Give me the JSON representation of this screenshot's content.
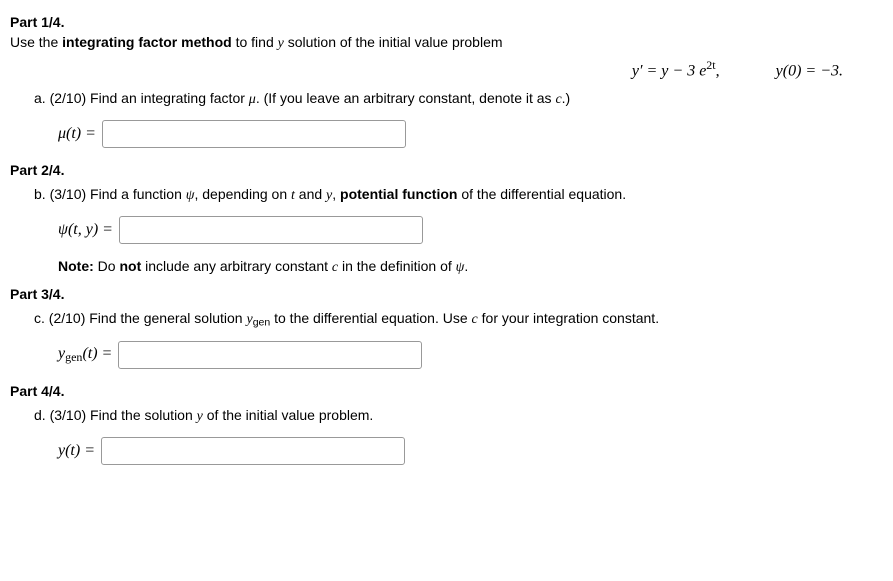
{
  "part1": {
    "heading": "Part 1/4.",
    "intro_before": "Use the ",
    "intro_bold": "integrating factor method",
    "intro_after": " to find ",
    "intro_var": "y",
    "intro_end": " solution of the initial value problem",
    "eq_lhs": "y′ = y − 3 e",
    "eq_exp": "2t",
    "eq_comma": ",",
    "ic": "y(0) = −3.",
    "a_prefix": "a.  (2/10) Find an integrating factor ",
    "a_mu": "μ",
    "a_mid": ". (If you leave an arbitrary constant, denote it as ",
    "a_c": "c",
    "a_end": ".)",
    "mu_label": "μ(t) ="
  },
  "part2": {
    "heading": "Part 2/4.",
    "b_prefix": "b.  (3/10) Find a function ",
    "b_psi": "ψ",
    "b_mid1": ", depending on ",
    "b_t": "t",
    "b_and": " and ",
    "b_y": "y",
    "b_comma": ", ",
    "b_bold": "potential function",
    "b_end": " of the differential equation.",
    "psi_label": "ψ(t, y) =",
    "note_before": "Note:",
    "note_mid1": " Do ",
    "note_bold": "not",
    "note_mid2": " include any arbitrary constant ",
    "note_c": "c",
    "note_mid3": " in the definition of ",
    "note_psi": "ψ",
    "note_end": "."
  },
  "part3": {
    "heading": "Part 3/4.",
    "c_prefix": "c.  (2/10) Find the general solution ",
    "c_ygen": "y",
    "c_gensub": "gen",
    "c_mid": " to the differential equation. Use ",
    "c_c": "c",
    "c_end": " for your integration constant.",
    "ygen_label_y": "y",
    "ygen_label_sub": "gen",
    "ygen_label_rest": "(t) ="
  },
  "part4": {
    "heading": "Part 4/4.",
    "d_text": "d.  (3/10) Find the solution ",
    "d_y": "y",
    "d_end": " of the initial value problem.",
    "y_label": "y(t) ="
  }
}
